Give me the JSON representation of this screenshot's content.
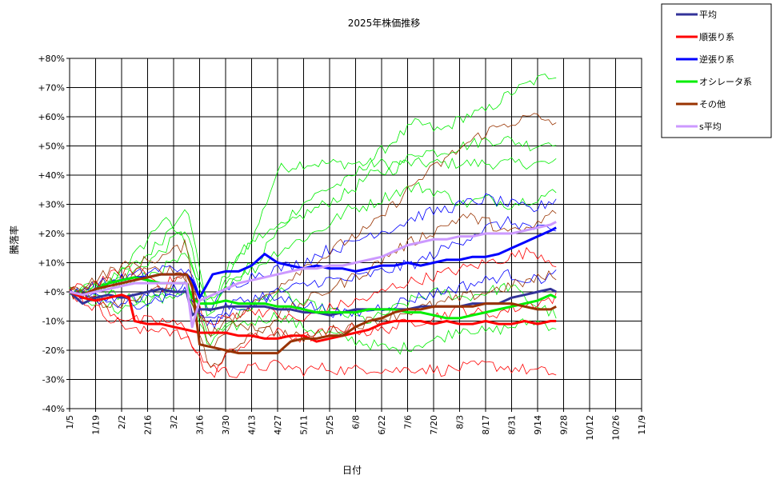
{
  "chart_data": {
    "type": "line",
    "title": "2025年株価推移",
    "xlabel": "日付",
    "ylabel": "騰落率",
    "x_ticks": [
      "1/5",
      "1/19",
      "2/2",
      "2/16",
      "3/2",
      "3/16",
      "3/30",
      "4/13",
      "4/27",
      "5/11",
      "5/25",
      "6/8",
      "6/22",
      "7/6",
      "7/20",
      "8/3",
      "8/17",
      "8/31",
      "9/14",
      "9/28",
      "10/12",
      "10/26",
      "11/9"
    ],
    "y_ticks": [
      "+80%",
      "+70%",
      "+60%",
      "+50%",
      "+40%",
      "+30%",
      "+20%",
      "+10%",
      "+0%",
      "-10%",
      "-20%",
      "-30%",
      "-40%"
    ],
    "ylim": [
      -40,
      80
    ],
    "grid": true,
    "legend_position": "top-right-outside",
    "series": [
      {
        "name": "平均",
        "color": "#333399",
        "width": 3,
        "points": [
          [
            0,
            0
          ],
          [
            7,
            -4
          ],
          [
            14,
            -2
          ],
          [
            21,
            -1
          ],
          [
            28,
            -2
          ],
          [
            35,
            -1
          ],
          [
            42,
            0
          ],
          [
            49,
            1
          ],
          [
            56,
            0
          ],
          [
            63,
            0
          ],
          [
            66,
            -8
          ],
          [
            70,
            -6
          ],
          [
            77,
            -6
          ],
          [
            84,
            -5
          ],
          [
            91,
            -5
          ],
          [
            98,
            -5
          ],
          [
            105,
            -5
          ],
          [
            112,
            -6
          ],
          [
            119,
            -6
          ],
          [
            126,
            -7
          ],
          [
            133,
            -7
          ],
          [
            140,
            -8
          ],
          [
            147,
            -7
          ],
          [
            154,
            -6
          ],
          [
            161,
            -6
          ],
          [
            168,
            -6
          ],
          [
            175,
            -6
          ],
          [
            182,
            -6
          ],
          [
            189,
            -5
          ],
          [
            196,
            -5
          ],
          [
            203,
            -5
          ],
          [
            210,
            -5
          ],
          [
            217,
            -4
          ],
          [
            224,
            -4
          ],
          [
            231,
            -4
          ],
          [
            238,
            -2
          ],
          [
            245,
            -1
          ],
          [
            252,
            0
          ],
          [
            259,
            1
          ],
          [
            262,
            0
          ]
        ]
      },
      {
        "name": "順張り系",
        "color": "#ff0000",
        "width": 3,
        "points": [
          [
            0,
            0
          ],
          [
            7,
            -2
          ],
          [
            14,
            -3
          ],
          [
            21,
            -2
          ],
          [
            28,
            -1
          ],
          [
            32,
            -2
          ],
          [
            35,
            -10
          ],
          [
            42,
            -11
          ],
          [
            49,
            -11
          ],
          [
            56,
            -12
          ],
          [
            63,
            -13
          ],
          [
            70,
            -14
          ],
          [
            77,
            -14
          ],
          [
            84,
            -14
          ],
          [
            91,
            -15
          ],
          [
            98,
            -15
          ],
          [
            105,
            -16
          ],
          [
            112,
            -16
          ],
          [
            119,
            -15
          ],
          [
            126,
            -15
          ],
          [
            133,
            -17
          ],
          [
            140,
            -16
          ],
          [
            147,
            -15
          ],
          [
            154,
            -14
          ],
          [
            161,
            -13
          ],
          [
            168,
            -11
          ],
          [
            175,
            -10
          ],
          [
            182,
            -10
          ],
          [
            189,
            -10
          ],
          [
            196,
            -11
          ],
          [
            203,
            -10
          ],
          [
            210,
            -11
          ],
          [
            217,
            -11
          ],
          [
            224,
            -10
          ],
          [
            231,
            -11
          ],
          [
            238,
            -11
          ],
          [
            245,
            -10
          ],
          [
            252,
            -11
          ],
          [
            259,
            -10
          ],
          [
            262,
            -10
          ]
        ]
      },
      {
        "name": "逆張り系",
        "color": "#0000ff",
        "width": 3,
        "points": [
          [
            0,
            0
          ],
          [
            7,
            -1
          ],
          [
            14,
            1
          ],
          [
            21,
            3
          ],
          [
            28,
            4
          ],
          [
            35,
            5
          ],
          [
            42,
            5
          ],
          [
            49,
            6
          ],
          [
            56,
            6
          ],
          [
            63,
            6
          ],
          [
            66,
            4
          ],
          [
            70,
            -2
          ],
          [
            77,
            6
          ],
          [
            84,
            7
          ],
          [
            91,
            7
          ],
          [
            98,
            9
          ],
          [
            105,
            13
          ],
          [
            112,
            10
          ],
          [
            119,
            9
          ],
          [
            126,
            8
          ],
          [
            133,
            9
          ],
          [
            140,
            8
          ],
          [
            147,
            8
          ],
          [
            154,
            7
          ],
          [
            161,
            8
          ],
          [
            168,
            9
          ],
          [
            175,
            9
          ],
          [
            182,
            10
          ],
          [
            189,
            9
          ],
          [
            196,
            10
          ],
          [
            203,
            11
          ],
          [
            210,
            11
          ],
          [
            217,
            12
          ],
          [
            224,
            12
          ],
          [
            231,
            13
          ],
          [
            238,
            15
          ],
          [
            245,
            17
          ],
          [
            252,
            19
          ],
          [
            259,
            21
          ],
          [
            262,
            22
          ]
        ]
      },
      {
        "name": "オシレータ系",
        "color": "#00ee00",
        "width": 3,
        "points": [
          [
            0,
            0
          ],
          [
            7,
            -1
          ],
          [
            14,
            1
          ],
          [
            21,
            3
          ],
          [
            28,
            4
          ],
          [
            35,
            5
          ],
          [
            42,
            4
          ],
          [
            49,
            3
          ],
          [
            56,
            3
          ],
          [
            63,
            3
          ],
          [
            66,
            -2
          ],
          [
            70,
            -4
          ],
          [
            77,
            -4
          ],
          [
            84,
            -3
          ],
          [
            91,
            -4
          ],
          [
            98,
            -4
          ],
          [
            105,
            -4
          ],
          [
            112,
            -5
          ],
          [
            119,
            -5
          ],
          [
            126,
            -6
          ],
          [
            133,
            -7
          ],
          [
            140,
            -7
          ],
          [
            147,
            -7
          ],
          [
            154,
            -7
          ],
          [
            161,
            -6
          ],
          [
            168,
            -6
          ],
          [
            175,
            -6
          ],
          [
            182,
            -7
          ],
          [
            189,
            -7
          ],
          [
            196,
            -8
          ],
          [
            203,
            -9
          ],
          [
            210,
            -9
          ],
          [
            217,
            -8
          ],
          [
            224,
            -7
          ],
          [
            231,
            -6
          ],
          [
            238,
            -5
          ],
          [
            245,
            -4
          ],
          [
            252,
            -3
          ],
          [
            259,
            -1
          ],
          [
            262,
            -2
          ]
        ]
      },
      {
        "name": "その他",
        "color": "#993300",
        "width": 3,
        "points": [
          [
            0,
            0
          ],
          [
            7,
            -1
          ],
          [
            14,
            1
          ],
          [
            21,
            2
          ],
          [
            28,
            3
          ],
          [
            35,
            4
          ],
          [
            42,
            5
          ],
          [
            49,
            6
          ],
          [
            56,
            6
          ],
          [
            63,
            6
          ],
          [
            66,
            2
          ],
          [
            70,
            -18
          ],
          [
            77,
            -19
          ],
          [
            84,
            -20
          ],
          [
            91,
            -21
          ],
          [
            98,
            -21
          ],
          [
            105,
            -21
          ],
          [
            112,
            -21
          ],
          [
            119,
            -17
          ],
          [
            126,
            -16
          ],
          [
            133,
            -16
          ],
          [
            140,
            -15
          ],
          [
            147,
            -15
          ],
          [
            154,
            -12
          ],
          [
            161,
            -10
          ],
          [
            168,
            -9
          ],
          [
            175,
            -7
          ],
          [
            182,
            -6
          ],
          [
            189,
            -6
          ],
          [
            196,
            -5
          ],
          [
            203,
            -5
          ],
          [
            210,
            -5
          ],
          [
            217,
            -5
          ],
          [
            224,
            -4
          ],
          [
            231,
            -4
          ],
          [
            238,
            -4
          ],
          [
            245,
            -5
          ],
          [
            252,
            -6
          ],
          [
            259,
            -6
          ],
          [
            262,
            -5
          ]
        ]
      },
      {
        "name": "s平均",
        "color": "#cc99ff",
        "width": 3,
        "points": [
          [
            0,
            0
          ],
          [
            7,
            -1
          ],
          [
            14,
            0
          ],
          [
            21,
            1
          ],
          [
            28,
            2
          ],
          [
            35,
            3
          ],
          [
            42,
            3
          ],
          [
            49,
            3
          ],
          [
            56,
            3
          ],
          [
            63,
            3
          ],
          [
            66,
            -12
          ],
          [
            70,
            -3
          ],
          [
            77,
            -1
          ],
          [
            84,
            1
          ],
          [
            91,
            3
          ],
          [
            98,
            4
          ],
          [
            105,
            5
          ],
          [
            112,
            6
          ],
          [
            119,
            7
          ],
          [
            126,
            8
          ],
          [
            133,
            8
          ],
          [
            140,
            9
          ],
          [
            147,
            9
          ],
          [
            154,
            10
          ],
          [
            161,
            11
          ],
          [
            168,
            12
          ],
          [
            175,
            14
          ],
          [
            182,
            16
          ],
          [
            189,
            17
          ],
          [
            196,
            18
          ],
          [
            203,
            18
          ],
          [
            210,
            19
          ],
          [
            217,
            19
          ],
          [
            224,
            20
          ],
          [
            231,
            20
          ],
          [
            238,
            20
          ],
          [
            245,
            21
          ],
          [
            252,
            22
          ],
          [
            259,
            23
          ],
          [
            262,
            24
          ]
        ]
      }
    ]
  }
}
